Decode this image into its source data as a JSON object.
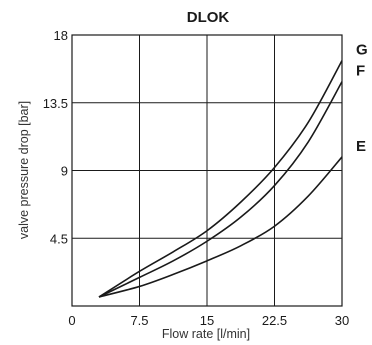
{
  "chart_data": {
    "type": "line",
    "title": "DLOK",
    "xlabel": "Flow rate [l/min]",
    "ylabel": "valve pressure drop [bar]",
    "xlim": [
      0,
      30
    ],
    "ylim": [
      0,
      18
    ],
    "x_ticks": [
      "0",
      "7.5",
      "15",
      "22.5",
      "30"
    ],
    "y_ticks": [
      "4.5",
      "9",
      "13.5",
      "18"
    ],
    "grid": true,
    "series": [
      {
        "name": "G",
        "x": [
          3,
          7.5,
          11.25,
          15,
          18.75,
          22.5,
          26.25,
          30
        ],
        "y": [
          0.6,
          2.3,
          3.6,
          5.0,
          6.9,
          9.2,
          12.2,
          16.3
        ]
      },
      {
        "name": "F",
        "x": [
          3,
          7.5,
          11.25,
          15,
          18.75,
          22.5,
          26.25,
          30
        ],
        "y": [
          0.6,
          1.9,
          3.0,
          4.3,
          5.9,
          8.0,
          10.9,
          14.9
        ]
      },
      {
        "name": "E",
        "x": [
          3,
          7.5,
          11.25,
          15,
          18.75,
          22.5,
          26.25,
          30
        ],
        "y": [
          0.6,
          1.3,
          2.1,
          3.0,
          4.0,
          5.3,
          7.3,
          9.9
        ]
      }
    ]
  }
}
